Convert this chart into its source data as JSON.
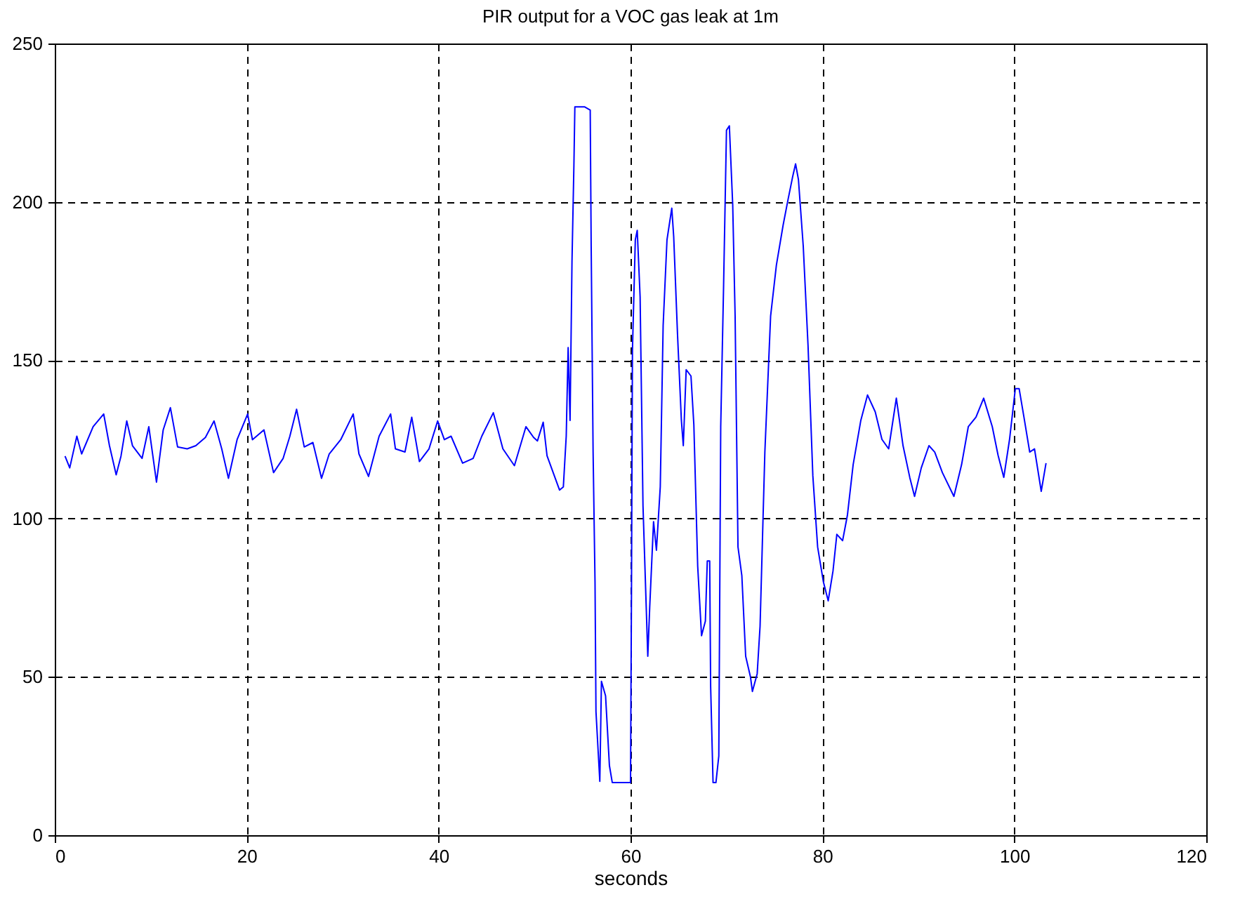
{
  "chart_data": {
    "type": "line",
    "title": "PIR output for a VOC gas leak at 1m",
    "xlabel": "seconds",
    "xlim": [
      0,
      120
    ],
    "xticks": [
      0,
      20,
      40,
      60,
      80,
      100,
      120
    ],
    "ylim": [
      0,
      250
    ],
    "yticks": [
      0,
      50,
      100,
      150,
      200,
      250
    ],
    "grid": true,
    "marker": "none",
    "line_style": "solid",
    "series": [
      {
        "color": "#0000ff",
        "x": [
          1.07,
          1.56,
          2.3,
          2.8,
          4.0,
          5.1,
          5.7,
          6.4,
          6.9,
          7.5,
          8.1,
          9.1,
          9.8,
          10.6,
          11.3,
          12.05,
          12.8,
          13.8,
          14.7,
          15.7,
          16.6,
          17.4,
          18.1,
          19.0,
          20.1,
          20.6,
          21.8,
          22.8,
          23.8,
          24.5,
          25.2,
          26.0,
          26.9,
          27.8,
          28.6,
          29.8,
          31.1,
          31.7,
          32.7,
          33.8,
          35.0,
          35.5,
          36.5,
          37.2,
          38.0,
          39.0,
          39.9,
          40.6,
          41.3,
          42.5,
          43.6,
          44.5,
          45.7,
          46.7,
          47.9,
          49.1,
          49.9,
          50.3,
          50.9,
          51.3,
          52.6,
          53.0,
          53.3,
          53.5,
          53.7,
          53.9,
          54.1,
          54.2,
          55.2,
          55.8,
          55.9,
          56.1,
          56.3,
          56.4,
          56.8,
          56.97,
          57.4,
          57.8,
          58.1,
          60.0,
          60.1,
          60.2,
          60.5,
          60.7,
          61.0,
          61.3,
          61.6,
          61.8,
          62.0,
          62.4,
          62.7,
          63.1,
          63.4,
          63.8,
          64.3,
          64.5,
          64.9,
          65.3,
          65.5,
          65.8,
          66.3,
          66.6,
          67.0,
          67.4,
          67.8,
          68.0,
          68.25,
          68.35,
          68.6,
          68.9,
          69.2,
          69.4,
          69.7,
          70.0,
          70.3,
          70.65,
          70.9,
          71.2,
          71.6,
          72.0,
          72.5,
          72.7,
          73.2,
          73.5,
          74.0,
          74.6,
          75.2,
          75.9,
          76.4,
          76.9,
          77.2,
          77.5,
          78.0,
          78.5,
          79.0,
          79.5,
          80.1,
          80.6,
          81.1,
          81.5,
          82.1,
          82.6,
          83.2,
          84.0,
          84.7,
          85.5,
          86.2,
          86.9,
          87.7,
          88.4,
          89.1,
          89.6,
          90.3,
          91.1,
          91.7,
          92.5,
          93.7,
          94.5,
          95.2,
          96.0,
          96.8,
          97.7,
          98.3,
          98.9,
          99.5,
          100.1,
          100.5,
          101.0,
          101.6,
          102.1,
          102.8,
          103.3
        ],
        "values": [
          119.7,
          116,
          126,
          120.4,
          129,
          133,
          123,
          113.8,
          119.7,
          130.8,
          123,
          119,
          129,
          111.5,
          128,
          135,
          122.6,
          122,
          123,
          125.6,
          130.8,
          122,
          112.7,
          124.9,
          133,
          124.9,
          128,
          114.5,
          119,
          126,
          134.5,
          122.6,
          124,
          112.7,
          120.4,
          124.9,
          133,
          120.4,
          113.3,
          126,
          133,
          122,
          121,
          132,
          118,
          122,
          130.8,
          124.9,
          126,
          117.5,
          119,
          126,
          133.4,
          122,
          116.7,
          129,
          125.6,
          124.5,
          130.4,
          119.8,
          109,
          110,
          126,
          154,
          131,
          181,
          211.5,
          230,
          230,
          229,
          186,
          121,
          80,
          39,
          17,
          48.6,
          44,
          22,
          16.6,
          16.6,
          77,
          153,
          188,
          191,
          170,
          104,
          75.5,
          56.5,
          72,
          99,
          90,
          110,
          161,
          188,
          198,
          189,
          158,
          131,
          123,
          147,
          145,
          129.6,
          85,
          63,
          67.6,
          86.6,
          86.6,
          47,
          16.6,
          16.6,
          25,
          129,
          173.6,
          222.6,
          224,
          199,
          164,
          91,
          82,
          56.5,
          50,
          45.4,
          51,
          66,
          121,
          164,
          180,
          192.6,
          200.5,
          208,
          212,
          207,
          186,
          154.6,
          113.5,
          91,
          80,
          74,
          83.4,
          95,
          93,
          101,
          117,
          131,
          139,
          133.7,
          125,
          122,
          138,
          123,
          113,
          107,
          116,
          123,
          121,
          114.5,
          107,
          117,
          129,
          132,
          138,
          129,
          120,
          113,
          125,
          141,
          141,
          132,
          121,
          122,
          108.6,
          117.5
        ]
      }
    ]
  }
}
